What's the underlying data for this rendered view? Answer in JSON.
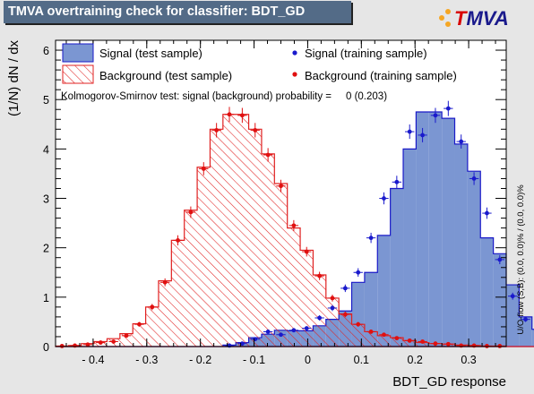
{
  "title": "TMVA overtraining check for classifier: BDT_GD",
  "logo_text": {
    "t": "T",
    "rest": "MVA"
  },
  "colors": {
    "signal_fill": "#7b96d2",
    "signal_line": "#1a1ac8",
    "background_line": "#e02020",
    "marker_signal": "#1a1acc",
    "marker_background": "#e01010"
  },
  "chart_data": {
    "type": "histogram",
    "xlabel": "BDT_GD response",
    "ylabel": "(1/N) dN / dx",
    "xlim": [
      -0.47,
      0.37
    ],
    "ylim": [
      0,
      6.2
    ],
    "x_ticks": [
      -0.4,
      -0.3,
      -0.2,
      -0.1,
      0,
      0.1,
      0.2,
      0.3
    ],
    "y_ticks": [
      0,
      1,
      2,
      3,
      4,
      5,
      6
    ],
    "bin_edges_start": -0.47,
    "bin_width": 0.024,
    "signal_test": [
      0,
      0,
      0,
      0,
      0,
      0,
      0,
      0,
      0,
      0,
      0,
      0,
      0,
      0.03,
      0.08,
      0.18,
      0.25,
      0.33,
      0.32,
      0.32,
      0.42,
      0.55,
      0.72,
      1.3,
      1.5,
      2.25,
      3.2,
      4.0,
      4.75,
      4.75,
      4.62,
      4.1,
      3.55,
      2.2,
      1.88,
      1.25,
      0.6,
      0.35,
      0.22,
      0.08,
      0
    ],
    "background_test": [
      0.01,
      0.02,
      0.06,
      0.1,
      0.16,
      0.26,
      0.46,
      0.8,
      1.33,
      2.15,
      2.76,
      3.63,
      4.4,
      4.7,
      4.7,
      4.4,
      3.9,
      3.3,
      2.4,
      1.95,
      1.45,
      0.98,
      0.66,
      0.45,
      0.3,
      0.22,
      0.18,
      0.12,
      0.08,
      0.06,
      0.05,
      0.03,
      0.02,
      0.01,
      0.01,
      0,
      0,
      0,
      0,
      0,
      0
    ],
    "signal_train": [
      0,
      0,
      0,
      0,
      0,
      0,
      0,
      0,
      0,
      0,
      0,
      0,
      0,
      0.02,
      0.06,
      0.15,
      0.3,
      0.24,
      0.33,
      0.37,
      0.58,
      0.78,
      1.18,
      1.5,
      2.2,
      3.0,
      3.33,
      4.35,
      4.28,
      4.68,
      4.82,
      4.15,
      3.4,
      2.7,
      1.76,
      1.02,
      0.55,
      0.33,
      0.22,
      0.12,
      0.02
    ],
    "background_train": [
      0.01,
      0.02,
      0.04,
      0.08,
      0.1,
      0.22,
      0.45,
      0.8,
      1.3,
      2.15,
      2.72,
      3.6,
      4.38,
      4.7,
      4.68,
      4.38,
      3.88,
      3.25,
      2.45,
      1.92,
      1.43,
      0.98,
      0.65,
      0.45,
      0.3,
      0.24,
      0.17,
      0.12,
      0.1,
      0.06,
      0.05,
      0.02,
      0.02,
      0.01,
      0.01,
      0,
      0,
      0,
      0,
      0,
      0
    ],
    "legend": {
      "signal_test": "Signal (test sample)",
      "signal_train": "Signal (training sample)",
      "background_test": "Background (test sample)",
      "background_train": "Background (training sample)"
    },
    "ks_text": "Kolmogorov-Smirnov test: signal (background) probability =     0 (0.203)",
    "overflow_text": "U/O-flow (S,B): (0.0, 0.0)% / (0.0, 0.0)%"
  }
}
